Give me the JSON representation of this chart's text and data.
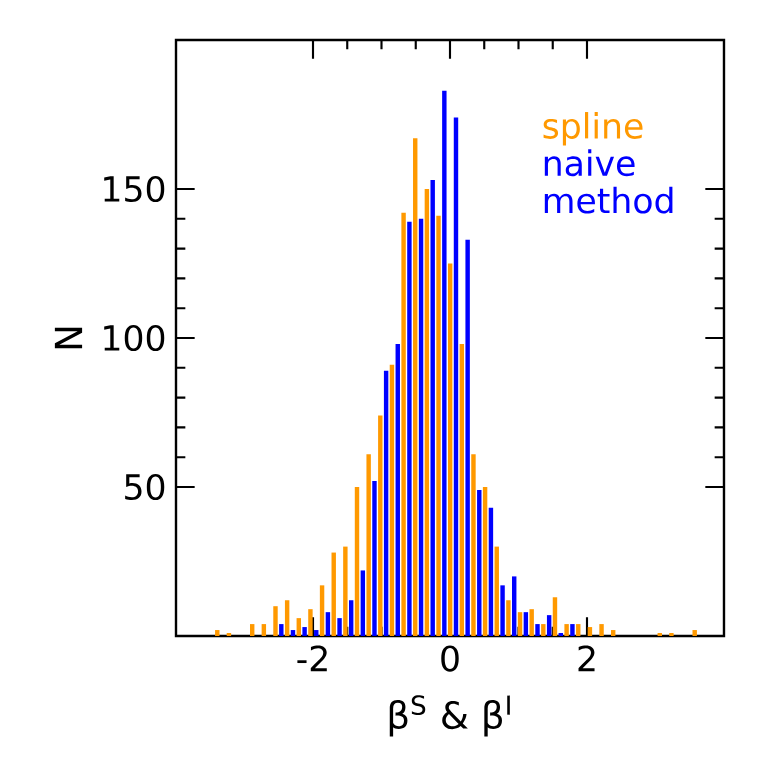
{
  "chart_data": {
    "type": "histogram",
    "xlabel": "β$^{S}$ & β$^{I}$",
    "ylabel": "N",
    "bins": [
      -3.44,
      -3.27,
      -3.1,
      -2.93,
      -2.76,
      -2.59,
      -2.42,
      -2.25,
      -2.08,
      -1.91,
      -1.74,
      -1.57,
      -1.4,
      -1.23,
      -1.06,
      -0.89,
      -0.72,
      -0.55,
      -0.38,
      -0.21,
      -0.04,
      0.13,
      0.3,
      0.47,
      0.64,
      0.81,
      0.98,
      1.15,
      1.32,
      1.49,
      1.66,
      1.83,
      2.0,
      2.17,
      2.34,
      2.51,
      2.68,
      2.85,
      3.02,
      3.19,
      3.36,
      3.53,
      3.7
    ],
    "series": [
      {
        "name": "spline",
        "color": "#ff9900",
        "values": [
          2,
          1,
          0,
          4,
          4,
          10,
          12,
          6,
          9,
          17,
          28,
          30,
          50,
          61,
          74,
          91,
          142,
          167,
          150,
          141,
          125,
          98,
          61,
          50,
          30,
          12,
          8,
          9,
          4,
          13,
          4,
          4,
          3,
          4,
          2,
          0,
          0,
          0,
          1,
          1,
          0,
          2
        ]
      },
      {
        "name": "naive method",
        "color": "#0000ff",
        "values": [
          0,
          0,
          0,
          0,
          0,
          4,
          2,
          3,
          2,
          8,
          6,
          12,
          22,
          52,
          89,
          98,
          139,
          140,
          153,
          183,
          174,
          133,
          49,
          43,
          17,
          20,
          8,
          4,
          7,
          1,
          4,
          0,
          0,
          0,
          0,
          0,
          0,
          0,
          0,
          0,
          0,
          0
        ]
      }
    ],
    "xlim": [
      -4,
      4
    ],
    "ylim": [
      0,
      200
    ],
    "xticks": [
      -2,
      0,
      2
    ],
    "yticks": [
      50,
      100,
      150
    ],
    "legend": "top right"
  }
}
